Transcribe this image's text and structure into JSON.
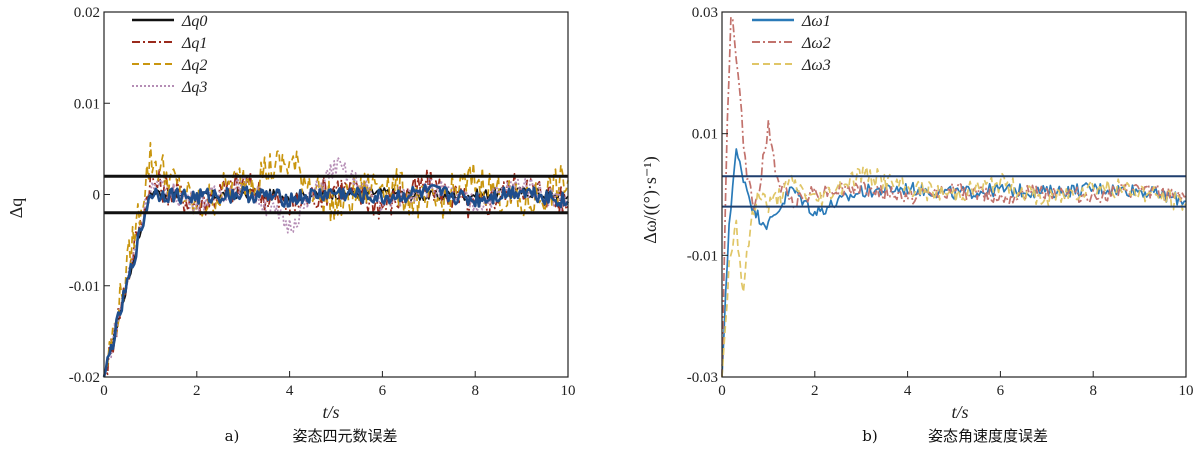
{
  "chart_data": [
    {
      "type": "line",
      "panel": "a)",
      "caption": "姿态四元数误差",
      "xlabel": "t/s",
      "ylabel": "Δq",
      "xlim": [
        0,
        10
      ],
      "ylim": [
        -0.02,
        0.02
      ],
      "xticks": [
        "0",
        "2",
        "4",
        "6",
        "8",
        "10"
      ],
      "yticks": [
        "-0.02",
        "-0.01",
        "0",
        "0.01",
        "0.02"
      ],
      "bounds": [
        0.002,
        -0.002
      ],
      "legend_position": "top-left",
      "series": [
        {
          "name": "Δq0",
          "color": "#111111",
          "dash": "solid",
          "amp": 0.0006,
          "start": -0.02,
          "x": [
            0,
            1,
            2,
            3,
            4,
            5,
            6,
            7,
            8,
            9,
            10
          ],
          "y": [
            -0.02,
            0.0003,
            -0.0003,
            0.0002,
            -0.0002,
            0.0001,
            0.0002,
            -0.0002,
            0.0,
            0.0003,
            -0.0002
          ]
        },
        {
          "name": "Δq1",
          "color": "#9a2a1c",
          "dash": "8,3,2,3",
          "amp": 0.0018,
          "start": -0.02,
          "x": [
            0,
            1,
            2,
            3,
            4,
            5,
            6,
            7,
            8,
            9,
            10
          ],
          "y": [
            -0.02,
            0.0015,
            -0.001,
            0.0012,
            -0.0014,
            0.001,
            -0.0012,
            0.0011,
            -0.0015,
            0.0012,
            -0.001
          ]
        },
        {
          "name": "Δq2",
          "color": "#c9960f",
          "dash": "7,4",
          "amp": 0.0022,
          "start": -0.02,
          "x": [
            0,
            1,
            2,
            3,
            4,
            5,
            6,
            7,
            8,
            9,
            10
          ],
          "y": [
            -0.02,
            0.004,
            -0.0015,
            0.0018,
            0.0035,
            -0.0014,
            0.0016,
            -0.0015,
            0.0017,
            -0.0013,
            0.0015
          ]
        },
        {
          "name": "Δq3",
          "color": "#b58db5",
          "dash": "2,2",
          "amp": 0.0012,
          "start": -0.02,
          "x": [
            0,
            1,
            2,
            3,
            4,
            5,
            6,
            7,
            8,
            9,
            10
          ],
          "y": [
            -0.02,
            0.001,
            -0.0009,
            0.0011,
            -0.0035,
            0.0032,
            -0.001,
            0.0009,
            -0.0011,
            0.0012,
            -0.0009
          ]
        },
        {
          "name": "Δq0 (blue overlay)",
          "color": "#1f4e8c",
          "dash": "solid",
          "width": 2.6,
          "amp": 0.0009,
          "start": -0.02,
          "legend": false,
          "x": [
            0,
            1,
            2,
            3,
            4,
            5,
            6,
            7,
            8,
            9,
            10
          ],
          "y": [
            -0.02,
            0.0002,
            -0.0003,
            0.0001,
            -0.0005,
            0.0002,
            -0.0004,
            0.0003,
            -0.0006,
            0.0005,
            -0.0008
          ]
        }
      ]
    },
    {
      "type": "line",
      "panel": "b)",
      "caption": "姿态角速度度误差",
      "xlabel": "t/s",
      "ylabel": "Δω/((°)·s⁻¹)",
      "xlim": [
        0,
        10
      ],
      "ylim": [
        -0.03,
        0.03
      ],
      "xticks": [
        "0",
        "2",
        "4",
        "6",
        "8",
        "10"
      ],
      "yticks": [
        "-0.03",
        "-0.01",
        "0.01",
        "0.03"
      ],
      "bounds": [
        0.003,
        -0.002
      ],
      "legend_position": "top-left",
      "series": [
        {
          "name": "Δω1",
          "color": "#2a7ab8",
          "dash": "solid",
          "amp": 0.0011,
          "x": [
            0,
            0.15,
            0.3,
            0.5,
            0.7,
            1.0,
            1.5,
            2.0,
            3,
            4,
            5,
            6,
            7,
            8,
            9,
            10
          ],
          "y": [
            -0.03,
            -0.005,
            0.007,
            0.002,
            -0.003,
            -0.005,
            0.001,
            -0.003,
            0.0005,
            0.001,
            0.0002,
            0.0008,
            0.0004,
            0.001,
            0.0007,
            -0.001
          ]
        },
        {
          "name": "Δω2",
          "color": "#c2726c",
          "dash": "8,3,2,3",
          "amp": 0.0013,
          "x": [
            0,
            0.1,
            0.2,
            0.35,
            0.5,
            0.7,
            0.9,
            1.0,
            1.2,
            1.5,
            2.0,
            3,
            4,
            5,
            6,
            7,
            8,
            9,
            10
          ],
          "y": [
            -0.03,
            0.01,
            0.03,
            0.02,
            0.005,
            -0.003,
            0.006,
            0.011,
            0.002,
            -0.001,
            0.0005,
            0.001,
            -0.0005,
            0.0008,
            -0.0003,
            0.0006,
            -0.0004,
            0.0007,
            -0.0002
          ]
        },
        {
          "name": "Δω3",
          "color": "#e0c667",
          "dash": "7,4",
          "amp": 0.0016,
          "x": [
            0,
            0.15,
            0.3,
            0.45,
            0.6,
            0.8,
            1.0,
            1.5,
            2.0,
            3,
            4,
            5,
            6,
            7,
            8,
            9,
            10
          ],
          "y": [
            -0.03,
            -0.012,
            -0.004,
            -0.016,
            -0.006,
            0.001,
            -0.002,
            0.002,
            -0.001,
            0.0035,
            0.001,
            0.0,
            0.002,
            -0.001,
            0.0015,
            0.0005,
            -0.0015
          ]
        }
      ]
    }
  ]
}
